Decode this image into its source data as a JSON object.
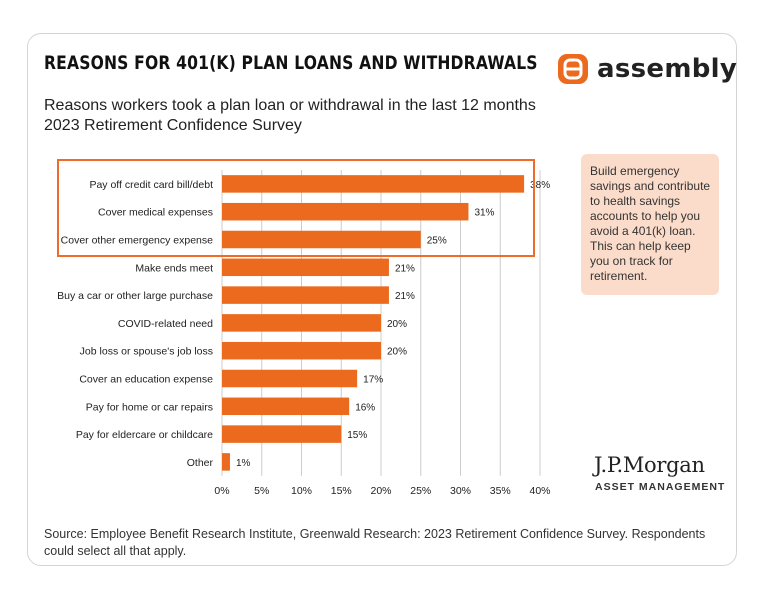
{
  "header": {
    "title": "REASONS FOR 401(K) PLAN LOANS AND WITHDRAWALS",
    "subtitle_line1": "Reasons workers took a plan loan or withdrawal in the last 12 months",
    "subtitle_line2": "2023 Retirement Confidence Survey",
    "logo_text": "assembly",
    "logo_icon": "assembly-logo-icon"
  },
  "callout": {
    "text": "Build emergency savings and contribute to health savings accounts to help you avoid a 401(k) loan. This can help keep you on track for retirement."
  },
  "branding": {
    "jpm_name": "J.P.Morgan",
    "jpm_sub": "ASSET MANAGEMENT"
  },
  "footer": {
    "source": "Source: Employee Benefit Research Institute, Greenwald Research: 2023 Retirement Confidence Survey. Respondents could select all that apply."
  },
  "colors": {
    "bar": "#ec6a1e",
    "highlight": "#ee6b2a",
    "callout_bg": "#fbdcca",
    "grid": "#cccccc"
  },
  "chart_data": {
    "type": "bar",
    "orientation": "horizontal",
    "categories": [
      "Pay off credit card bill/debt",
      "Cover medical expenses",
      "Cover other emergency expense",
      "Make ends meet",
      "Buy a car or other large purchase",
      "COVID-related need",
      "Job loss or spouse's job loss",
      "Cover an education expense",
      "Pay for home or car repairs",
      "Pay for eldercare or childcare",
      "Other"
    ],
    "values": [
      38,
      31,
      25,
      21,
      21,
      20,
      20,
      17,
      16,
      15,
      1
    ],
    "value_labels": [
      "38%",
      "31%",
      "25%",
      "21%",
      "21%",
      "20%",
      "20%",
      "17%",
      "16%",
      "15%",
      "1%"
    ],
    "xlim": [
      0,
      40
    ],
    "xticks": [
      0,
      5,
      10,
      15,
      20,
      25,
      30,
      35,
      40
    ],
    "xtick_labels": [
      "0%",
      "5%",
      "10%",
      "15%",
      "20%",
      "25%",
      "30%",
      "35%",
      "40%"
    ],
    "grid": true,
    "highlighted_categories": 3,
    "xlabel": "",
    "ylabel": ""
  }
}
